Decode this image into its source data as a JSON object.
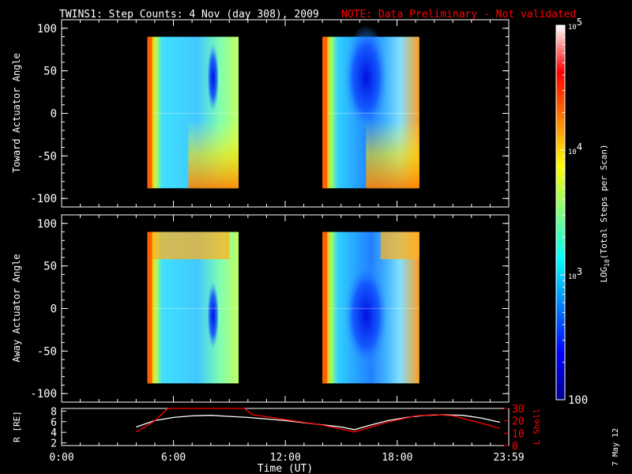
{
  "title": {
    "main": "TWINS1: Step Counts:  4 Nov (day 308), 2009",
    "note": "NOTE: Data Preliminary - Not validated",
    "note_color": "#ff0000"
  },
  "footer_date": "7 May 12",
  "colorbar": {
    "label": "LOG10(Total Steps per Scan)",
    "range": [
      100,
      100000
    ],
    "scale": "log",
    "colormap": "jet",
    "tick_labels": [
      {
        "base": "10",
        "exp": "5",
        "value": 100000
      },
      {
        "base": "10",
        "exp": "4",
        "value": 10000
      },
      {
        "base": "10",
        "exp": "3",
        "value": 1000
      },
      {
        "base": "100",
        "exp": "",
        "value": 100
      }
    ]
  },
  "chart_data": [
    {
      "type": "heatmap",
      "panel": "toward",
      "ylabel": "Toward Actuator Angle",
      "ylim": [
        -110,
        110
      ],
      "yticks": [
        100,
        50,
        0,
        -50,
        -100
      ],
      "xlim_hours": [
        0,
        24
      ],
      "data_y_range": [
        -88,
        90
      ],
      "segments_hours": [
        [
          4.6,
          9.5
        ],
        [
          14.0,
          19.2
        ]
      ],
      "log_counts_approx": "background ~3.2-3.5 (cyan), edges ~4.3-4.7 (orange/red), min ~2.3 near 8.7h"
    },
    {
      "type": "heatmap",
      "panel": "away",
      "ylabel": "Away Actuator Angle",
      "ylim": [
        -110,
        110
      ],
      "yticks": [
        100,
        50,
        0,
        -50,
        -100
      ],
      "xlim_hours": [
        0,
        24
      ],
      "data_y_range": [
        -88,
        90
      ],
      "segments_hours": [
        [
          4.6,
          9.5
        ],
        [
          14.0,
          19.2
        ]
      ],
      "log_counts_approx": "background ~3.2-3.5 (cyan), edges ~4.3-4.7 (orange/red), min ~2.3 near 8.7h"
    },
    {
      "type": "line",
      "panel": "orbit",
      "xlabel": "Time (UT)",
      "ylabel_left": "R [RE]",
      "ylabel_right": "L Shell",
      "ylim_left": [
        1.5,
        8.5
      ],
      "yticks_left": [
        2,
        4,
        6,
        8
      ],
      "ylim_right": [
        0,
        30
      ],
      "yticks_right": [
        0,
        10,
        20,
        30
      ],
      "xlim_hours": [
        0,
        23.98
      ],
      "x_tick_labels": [
        "0:00",
        "6:00",
        "12:00",
        "18:00",
        "23:59"
      ],
      "x_tick_hours": [
        0,
        6,
        12,
        18,
        23.98
      ],
      "series": [
        {
          "color": "#ffffff",
          "axis": "left",
          "x": [
            4.0,
            5.0,
            6.0,
            7.0,
            8.0,
            9.0,
            10.0,
            11.0,
            12.0,
            13.0,
            14.0,
            15.0,
            15.7,
            16.5,
            17.5,
            18.5,
            19.5,
            20.5,
            21.5,
            22.5,
            23.5
          ],
          "y": [
            5.0,
            6.2,
            6.8,
            7.1,
            7.2,
            7.0,
            6.8,
            6.5,
            6.2,
            5.8,
            5.4,
            5.0,
            4.5,
            5.3,
            6.2,
            6.8,
            7.2,
            7.3,
            7.2,
            6.7,
            5.9
          ]
        },
        {
          "color": "#ff0000",
          "axis": "right",
          "x": [
            4.0,
            5.0,
            5.7,
            9.8,
            10.2,
            12.0,
            14.0,
            15.7,
            17.5,
            19.0,
            20.0,
            21.0,
            22.5,
            23.5
          ],
          "y": [
            11.0,
            20.0,
            30.0,
            30.0,
            25.0,
            21.0,
            16.5,
            11.0,
            19.0,
            24.0,
            25.0,
            24.0,
            18.0,
            14.0
          ]
        }
      ]
    }
  ]
}
